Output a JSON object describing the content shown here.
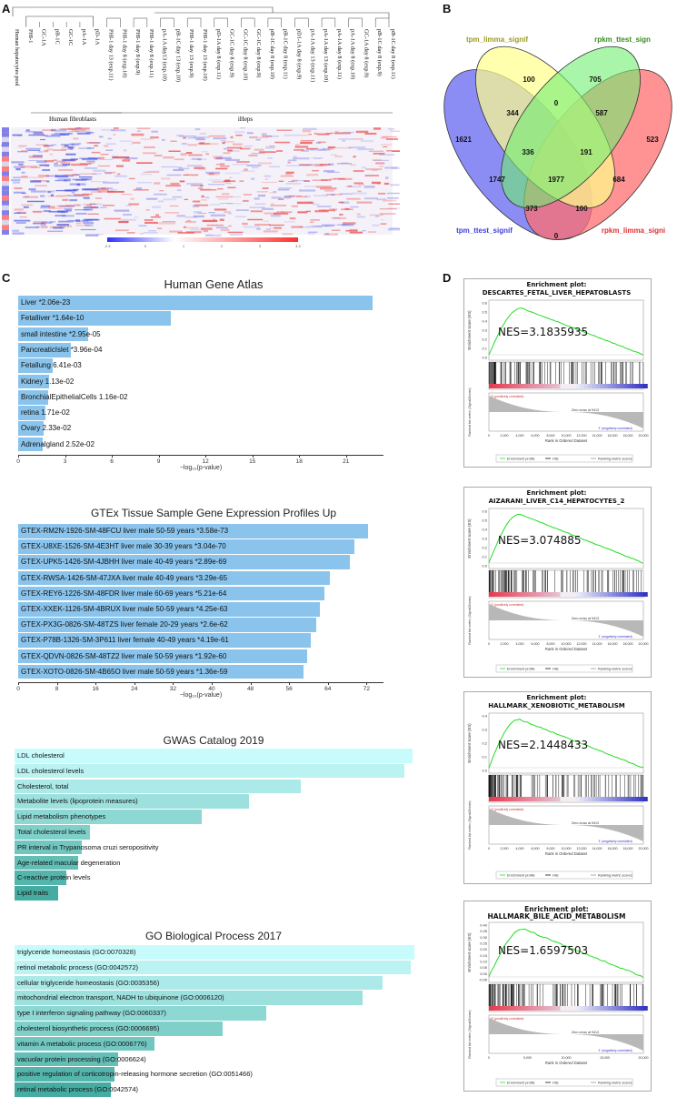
{
  "panels": {
    "A": "A",
    "B": "B",
    "C": "C",
    "D": "D"
  },
  "panelA": {
    "columns": [
      "Human hepatocytes pool",
      "PHI-1",
      "GC-1A",
      "pB-1C",
      "GC-1C",
      "pA-1A",
      "pD-1A",
      "PHI-1 day 13 (exp.11)",
      "PHI-1 day 8 (exp.10)",
      "PHI-1 day 8 (exp.9)",
      "PHI-1 day 8 (exp.11)",
      "pA-1A day13 (exp.10)",
      "pB-1C day 13 (exp.10)",
      "PHI-1 day 13 (exp.9)",
      "PHI-1 day 13 (exp.10)",
      "pD-1A day 8 (exp.11)",
      "GC-1C day 8 (exp.9)",
      "GC-1C day 8 (exp.10)",
      "GC-1C day 8 (exp.9)",
      "pB-1C day 8 (exp.10)",
      "pB-1C day 8 (exp.11)",
      "pD1-1A day 8 (exp.9)",
      "pA-1A day 13 (exp.11)",
      "pA-1A day 13 (exp.10)",
      "pA-1A day 8 (exp.11)",
      "pA-1A day 8 (exp.10)",
      "GC-1A day 8 (exp.9)",
      "pB-1C day 8 (exp.9)",
      "pB-1C day 8 (exp.11)"
    ],
    "group_fibro": "Human fibroblasts",
    "group_iheps": "iHeps",
    "scale_ticks": [
      "-2.3",
      "0",
      "1",
      "2",
      "3",
      "4.3"
    ]
  },
  "panelB": {
    "sets": [
      "tpm_limma_signif",
      "rpkm_ttest_sign",
      "tpm_ttest_signif",
      "rpkm_limma_signi"
    ],
    "set_colors": [
      "#9b9b22",
      "#3a8a1f",
      "#3d3ddb",
      "#e03030"
    ],
    "counts": [
      "100",
      "705",
      "1621",
      "344",
      "0",
      "587",
      "523",
      "336",
      "191",
      "1977",
      "1747",
      "684",
      "373",
      "100",
      "0"
    ]
  },
  "panelC": {
    "charts": [
      {
        "title": "Human Gene Atlas",
        "type": "bar",
        "xlabel": "−log₁₀(p-value)",
        "ticks": [
          0,
          3,
          6,
          9,
          12,
          15,
          18,
          21
        ],
        "xmax": 23.4,
        "items": [
          {
            "label": "Liver",
            "stat": "*2.06e-23",
            "value": 22.7
          },
          {
            "label": "Fetalliver",
            "stat": "*1.64e-10",
            "value": 9.8
          },
          {
            "label": "small intestine",
            "stat": "*2.95e-05",
            "value": 4.5
          },
          {
            "label": "PancreaticIslet",
            "stat": "*3.96e-04",
            "value": 3.4
          },
          {
            "label": "Fetallung",
            "stat": "6.41e-03",
            "value": 2.2
          },
          {
            "label": "Kidney",
            "stat": "1.13e-02",
            "value": 1.95
          },
          {
            "label": "BronchialEpithelialCells",
            "stat": "1.16e-02",
            "value": 1.94
          },
          {
            "label": "retina",
            "stat": "1.71e-02",
            "value": 1.77
          },
          {
            "label": "Ovary",
            "stat": "2.33e-02",
            "value": 1.63
          },
          {
            "label": "Adrenalgland",
            "stat": "2.52e-02",
            "value": 1.6
          }
        ]
      },
      {
        "title": "GTEx Tissue Sample Gene Expression Profiles Up",
        "type": "bar",
        "xlabel": "−log₁₀(p-value)",
        "ticks": [
          0,
          8,
          16,
          24,
          32,
          40,
          48,
          56,
          64,
          72
        ],
        "xmax": 75.5,
        "items": [
          {
            "label": "GTEX-RM2N-1926-SM-48FCU liver male 50-59 years",
            "stat": "*3.58e-73",
            "value": 72.4
          },
          {
            "label": "GTEX-U8XE-1526-SM-4E3HT liver male 30-39 years",
            "stat": "*3.04e-70",
            "value": 69.5
          },
          {
            "label": "GTEX-UPK5-1426-SM-4JBHH liver male 40-49 years",
            "stat": "*2.89e-69",
            "value": 68.5
          },
          {
            "label": "GTEX-RWSA-1426-SM-47JXA liver male 40-49 years",
            "stat": "*3.29e-65",
            "value": 64.5
          },
          {
            "label": "GTEX-REY6-1226-SM-48FDR liver male 60-69 years",
            "stat": "*5.21e-64",
            "value": 63.3
          },
          {
            "label": "GTEX-XXEK-1126-SM-4BRUX liver male 50-59 years",
            "stat": "*4.25e-63",
            "value": 62.4
          },
          {
            "label": "GTEX-PX3G-0826-SM-48TZS liver female 20-29 years",
            "stat": "*2.6e-62",
            "value": 61.6
          },
          {
            "label": "GTEX-P78B-1326-SM-3P611 liver female 40-49 years",
            "stat": "*4.19e-61",
            "value": 60.4
          },
          {
            "label": "GTEX-QDVN-0826-SM-48TZ2 liver male 50-59 years",
            "stat": "*1.92e-60",
            "value": 59.7
          },
          {
            "label": "GTEX-XOTO-0826-SM-4B65O liver male 50-59 years",
            "stat": "*1.36e-59",
            "value": 58.9
          }
        ]
      },
      {
        "title": "GWAS Catalog 2019",
        "type": "bar",
        "xmax": 100,
        "items": [
          {
            "label": "LDL cholesterol",
            "value": 100
          },
          {
            "label": "LDL cholesterol levels",
            "value": 98
          },
          {
            "label": "Cholesterol, total",
            "value": 72
          },
          {
            "label": "Metabolite levels (lipoprotein measures)",
            "value": 59
          },
          {
            "label": "Lipid metabolism phenotypes",
            "value": 47
          },
          {
            "label": "Total cholesterol levels",
            "value": 19
          },
          {
            "label": "PR interval in Trypanosoma cruzi seropositivity",
            "value": 17
          },
          {
            "label": "Age-related macular degeneration",
            "value": 16
          },
          {
            "label": "C-reactive protein levels",
            "value": 13
          },
          {
            "label": "Lipid traits",
            "value": 11
          }
        ]
      },
      {
        "title": "GO Biological Process 2017",
        "type": "bar",
        "xmax": 100,
        "items": [
          {
            "label": "triglyceride homeostasis (GO:0070328)",
            "value": 100
          },
          {
            "label": "retinol metabolic process (GO:0042572)",
            "value": 99
          },
          {
            "label": "cellular triglyceride homeostasis (GO:0035356)",
            "value": 92
          },
          {
            "label": "mitochondrial electron transport, NADH to ubiquinone (GO:0006120)",
            "value": 87
          },
          {
            "label": "type I interferon signaling pathway (GO:0060337)",
            "value": 63
          },
          {
            "label": "cholesterol biosynthetic process (GO:0006695)",
            "value": 52
          },
          {
            "label": "vitamin A metabolic process (GO:0006776)",
            "value": 35
          },
          {
            "label": "vacuolar protein processing (GO:0006624)",
            "value": 26
          },
          {
            "label": "positive regulation of corticotropin-releasing hormone secretion (GO:0051466)",
            "value": 25
          },
          {
            "label": "retinal metabolic process (GO:0042574)",
            "value": 24
          }
        ]
      }
    ]
  },
  "panelD": {
    "plots": [
      {
        "title_top": "Enrichment plot:",
        "title_main": "DESCARTES_FETAL_LIVER_HEPATOBLASTS",
        "nes": "NES=3.1835935",
        "ymax": 0.7,
        "yticks": [
          "0.6",
          "0.5",
          "0.4",
          "0.3",
          "0.2",
          "0.1",
          "0.0"
        ],
        "peak_x": 4200,
        "peak_y": 0.62
      },
      {
        "title_top": "Enrichment plot:",
        "title_main": "AIZARANI_LIVER_C14_HEPATOCYTES_2",
        "nes": "NES=3.074885",
        "ymax": 0.7,
        "yticks": [
          "0.6",
          "0.5",
          "0.4",
          "0.3",
          "0.2",
          "0.1",
          "0.0"
        ],
        "peak_x": 4000,
        "peak_y": 0.65
      },
      {
        "title_top": "Enrichment plot:",
        "title_main": "HALLMARK_XENOBIOTIC_METABOLISM",
        "nes": "NES=2.1448433",
        "ymax": 0.5,
        "yticks": [
          "0.4",
          "0.3",
          "0.2",
          "0.1",
          "0.0"
        ],
        "peak_x": 3900,
        "peak_y": 0.46
      },
      {
        "title_top": "",
        "title_main": "Enrichment plot: HALLMARK_BILE_ACID_METABOLISM",
        "nes": "NES=1.6597503",
        "ymax": 0.42,
        "yticks": [
          "0.40",
          "0.35",
          "0.30",
          "0.25",
          "0.20",
          "0.15",
          "0.10",
          "0.05",
          "0.00",
          "-0.05"
        ],
        "peak_x": 4500,
        "peak_y": 0.38
      }
    ],
    "ylabel_es": "Enrichment score (ES)",
    "ylabel_rank": "Ranked list metric (Signal2Noise)",
    "pos_label": "'0' (positively correlated)",
    "neg_label": "'1' (negatively correlated)",
    "zero_cross": "Zero cross at 9413",
    "xlabel": "Rank in Ordered Dataset",
    "xticks": [
      "0",
      "2,000",
      "4,000",
      "6,000",
      "8,000",
      "10,000",
      "12,000",
      "14,000",
      "16,000",
      "18,000",
      "20,000"
    ],
    "xticks_last": [
      "0",
      "5,000",
      "10,000",
      "15,000",
      "20,000"
    ],
    "legend": [
      "Enrichment profile",
      "Hits",
      "Ranking metric scores"
    ]
  }
}
